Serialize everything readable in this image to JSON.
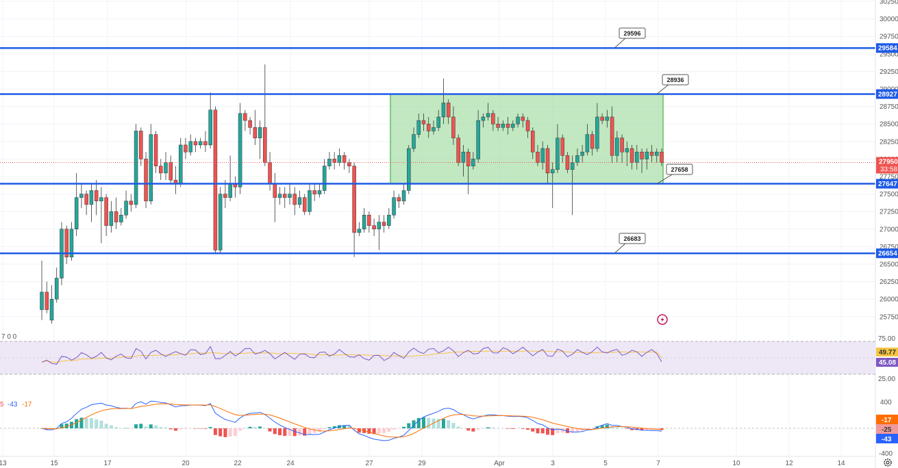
{
  "colors": {
    "up": "#26a69a",
    "down": "#ef5350",
    "level_line": "#1e5ae6",
    "zone_fill": "#9fdc9f",
    "zone_stroke": "#5fbf5f",
    "rsi_line": "#7e57c2",
    "rsi_ma": "#f5c542",
    "rsi_band": "#ede7f6",
    "macd_line": "#2962ff",
    "signal_line": "#ff6d00",
    "hist_up_strong": "#26a69a",
    "hist_up_weak": "#b2dfdb",
    "hist_down_strong": "#ef5350",
    "hist_down_weak": "#ffcdd2",
    "grid": "#f0f3fa"
  },
  "price_axis": {
    "ticks": [
      "30250",
      "30000",
      "29750",
      "29500",
      "29250",
      "29000",
      "28750",
      "28500",
      "28250",
      "28000",
      "27750",
      "27500",
      "27250",
      "27000",
      "26750",
      "26500",
      "26250",
      "26000",
      "25750"
    ]
  },
  "time_axis": {
    "ticks": [
      "13",
      "15",
      "17",
      "20",
      "22",
      "24",
      "27",
      "29",
      "Apr",
      "3",
      "5",
      "7",
      "10",
      "12",
      "14"
    ]
  },
  "level_lines": [
    {
      "price": 29584,
      "label": "29584"
    },
    {
      "price": 28927,
      "label": "28927"
    },
    {
      "price": 27647,
      "label": "27647"
    },
    {
      "price": 26654,
      "label": "26654"
    }
  ],
  "current_price": {
    "label": "27950",
    "countdown": "33:58"
  },
  "callouts": [
    {
      "text": "29596"
    },
    {
      "text": "28936"
    },
    {
      "text": "27658"
    },
    {
      "text": "26683"
    }
  ],
  "zone": {
    "top": 28927,
    "bottom": 27647
  },
  "rsi_panel": {
    "axis_ticks": [
      "75.00",
      "25.00"
    ],
    "ma_label": "49.77",
    "rsi_label": "45.08",
    "legend": "7 0 0"
  },
  "macd_panel": {
    "axis_ticks": [
      "400",
      "-400"
    ],
    "labels": [
      "-17",
      "-25",
      "-43"
    ],
    "legend": [
      "5",
      "-43",
      "-17"
    ]
  },
  "chart_data": {
    "type": "candlestick",
    "ylim": [
      25600,
      30300
    ],
    "levels": [
      29584,
      28927,
      27647,
      26654
    ],
    "callout_values": [
      29596,
      28936,
      27658,
      26683
    ],
    "candles": [
      [
        25850,
        26100,
        26550,
        25700
      ],
      [
        26100,
        25850,
        26250,
        25800
      ],
      [
        25700,
        26000,
        26200,
        25650
      ],
      [
        26000,
        26300,
        26450,
        25950
      ],
      [
        26300,
        27000,
        27100,
        26200
      ],
      [
        27000,
        26600,
        27050,
        26500
      ],
      [
        26600,
        27000,
        27100,
        26550
      ],
      [
        27000,
        27450,
        27800,
        26900
      ],
      [
        27450,
        27500,
        27650,
        27300
      ],
      [
        27500,
        27350,
        27550,
        27200
      ],
      [
        27350,
        27550,
        27650,
        27100
      ],
      [
        27550,
        27400,
        27700,
        27200
      ],
      [
        27400,
        27450,
        27600,
        26800
      ],
      [
        27450,
        27050,
        27500,
        26900
      ],
      [
        27050,
        27250,
        27400,
        26950
      ],
      [
        27250,
        27100,
        27450,
        27000
      ],
      [
        27100,
        27200,
        27300,
        27050
      ],
      [
        27200,
        27400,
        27550,
        27150
      ],
      [
        27400,
        27350,
        27500,
        27250
      ],
      [
        27350,
        28400,
        28500,
        27300
      ],
      [
        28400,
        28000,
        28450,
        27900
      ],
      [
        28000,
        27400,
        28100,
        27300
      ],
      [
        27400,
        28350,
        28500,
        27350
      ],
      [
        28350,
        27900,
        28400,
        27800
      ],
      [
        27900,
        27800,
        28000,
        27700
      ],
      [
        27800,
        27950,
        28100,
        27700
      ],
      [
        27950,
        27700,
        28050,
        27650
      ],
      [
        27700,
        27650,
        27900,
        27500
      ],
      [
        27650,
        28200,
        28300,
        27600
      ],
      [
        28200,
        28100,
        28300,
        28000
      ],
      [
        28100,
        28250,
        28350,
        28050
      ],
      [
        28250,
        28200,
        28300,
        28100
      ],
      [
        28200,
        28250,
        28300,
        28150
      ],
      [
        28250,
        28200,
        28400,
        28100
      ],
      [
        28200,
        28700,
        28950,
        28150
      ],
      [
        28700,
        26700,
        28750,
        26650
      ],
      [
        26700,
        27500,
        27600,
        26650
      ],
      [
        27500,
        27450,
        27700,
        27300
      ],
      [
        27450,
        27650,
        28050,
        27400
      ],
      [
        27650,
        27600,
        27750,
        27450
      ],
      [
        27600,
        28650,
        28800,
        27500
      ],
      [
        28650,
        28550,
        28700,
        28400
      ],
      [
        28550,
        28450,
        28600,
        28350
      ],
      [
        28450,
        28300,
        28700,
        28200
      ],
      [
        28300,
        28450,
        28550,
        28000
      ],
      [
        28450,
        27950,
        29350,
        27900
      ],
      [
        27950,
        27650,
        28100,
        27550
      ],
      [
        27650,
        27450,
        27800,
        27100
      ],
      [
        27450,
        27500,
        27600,
        27350
      ],
      [
        27500,
        27450,
        27600,
        27300
      ],
      [
        27450,
        27500,
        27650,
        27350
      ],
      [
        27500,
        27350,
        27600,
        27200
      ],
      [
        27350,
        27450,
        27550,
        27300
      ],
      [
        27450,
        27250,
        27500,
        27200
      ],
      [
        27250,
        27550,
        27650,
        27200
      ],
      [
        27550,
        27500,
        27650,
        27400
      ],
      [
        27500,
        27550,
        27650,
        27450
      ],
      [
        27550,
        27900,
        28000,
        27500
      ],
      [
        27900,
        28000,
        28100,
        27850
      ],
      [
        28000,
        27950,
        28100,
        27850
      ],
      [
        27950,
        28050,
        28150,
        27900
      ],
      [
        28050,
        27950,
        28100,
        27850
      ],
      [
        27950,
        27900,
        28000,
        27800
      ],
      [
        27900,
        26950,
        27950,
        26600
      ],
      [
        26950,
        27000,
        27100,
        26900
      ],
      [
        27000,
        27200,
        27300,
        26950
      ],
      [
        27200,
        27050,
        27250,
        26950
      ],
      [
        27050,
        27000,
        27150,
        26900
      ],
      [
        27000,
        27100,
        27200,
        26700
      ],
      [
        27100,
        27050,
        27200,
        26950
      ],
      [
        27050,
        27200,
        27300,
        27000
      ],
      [
        27200,
        27450,
        27550,
        27150
      ],
      [
        27450,
        27400,
        27500,
        27300
      ],
      [
        27400,
        27550,
        27650,
        27350
      ],
      [
        27550,
        28150,
        28200,
        27500
      ],
      [
        28150,
        28350,
        28450,
        28100
      ],
      [
        28350,
        28550,
        28650,
        28300
      ],
      [
        28550,
        28500,
        28650,
        28400
      ],
      [
        28500,
        28400,
        28600,
        28300
      ],
      [
        28400,
        28450,
        28550,
        28350
      ],
      [
        28450,
        28600,
        28700,
        28400
      ],
      [
        28600,
        28800,
        29150,
        28500
      ],
      [
        28800,
        28600,
        28850,
        28500
      ],
      [
        28600,
        28300,
        28750,
        28200
      ],
      [
        28300,
        27950,
        28350,
        27900
      ],
      [
        27950,
        28100,
        28200,
        27750
      ],
      [
        28100,
        27900,
        28150,
        27500
      ],
      [
        27900,
        28000,
        28100,
        27850
      ],
      [
        28000,
        28550,
        28700,
        27950
      ],
      [
        28550,
        28600,
        28650,
        28450
      ],
      [
        28600,
        28650,
        28800,
        28550
      ],
      [
        28650,
        28500,
        28700,
        28400
      ],
      [
        28500,
        28450,
        28600,
        28400
      ],
      [
        28450,
        28500,
        28550,
        28400
      ],
      [
        28500,
        28450,
        28600,
        28350
      ],
      [
        28450,
        28500,
        28550,
        28400
      ],
      [
        28500,
        28600,
        28650,
        28450
      ],
      [
        28600,
        28550,
        28650,
        28450
      ],
      [
        28550,
        28400,
        28600,
        28300
      ],
      [
        28400,
        28100,
        28450,
        28000
      ],
      [
        28100,
        27950,
        28200,
        27900
      ],
      [
        27950,
        28150,
        28250,
        27850
      ],
      [
        28150,
        27800,
        28200,
        27650
      ],
      [
        27800,
        27850,
        27950,
        27300
      ],
      [
        27850,
        28300,
        28500,
        27800
      ],
      [
        28300,
        28050,
        28350,
        27950
      ],
      [
        28050,
        27850,
        28100,
        27800
      ],
      [
        27850,
        27950,
        28050,
        27200
      ],
      [
        27950,
        28050,
        28150,
        27900
      ],
      [
        28050,
        28100,
        28200,
        27950
      ],
      [
        28100,
        28350,
        28500,
        28050
      ],
      [
        28350,
        28150,
        28400,
        28050
      ],
      [
        28150,
        28600,
        28800,
        28100
      ],
      [
        28600,
        28550,
        28650,
        28500
      ],
      [
        28550,
        28600,
        28700,
        28450
      ],
      [
        28600,
        28050,
        28750,
        27950
      ],
      [
        28050,
        28300,
        28400,
        27950
      ],
      [
        28300,
        28100,
        28350,
        27950
      ],
      [
        28100,
        28150,
        28250,
        27900
      ],
      [
        28150,
        27950,
        28200,
        27850
      ],
      [
        27950,
        28100,
        28200,
        27850
      ],
      [
        28100,
        28000,
        28150,
        27800
      ],
      [
        28000,
        28100,
        28150,
        27850
      ],
      [
        28100,
        28050,
        28200,
        27950
      ],
      [
        28050,
        28100,
        28150,
        27950
      ],
      [
        28100,
        27950,
        28150,
        27900
      ]
    ],
    "rsi": {
      "range": [
        0,
        100
      ],
      "bands": [
        70,
        30
      ],
      "ma_value": 49.77,
      "last_value": 45.08
    },
    "macd": {
      "range": [
        -400,
        400
      ],
      "macd_last": -43,
      "signal_last": -17,
      "histogram_last": -25
    }
  }
}
